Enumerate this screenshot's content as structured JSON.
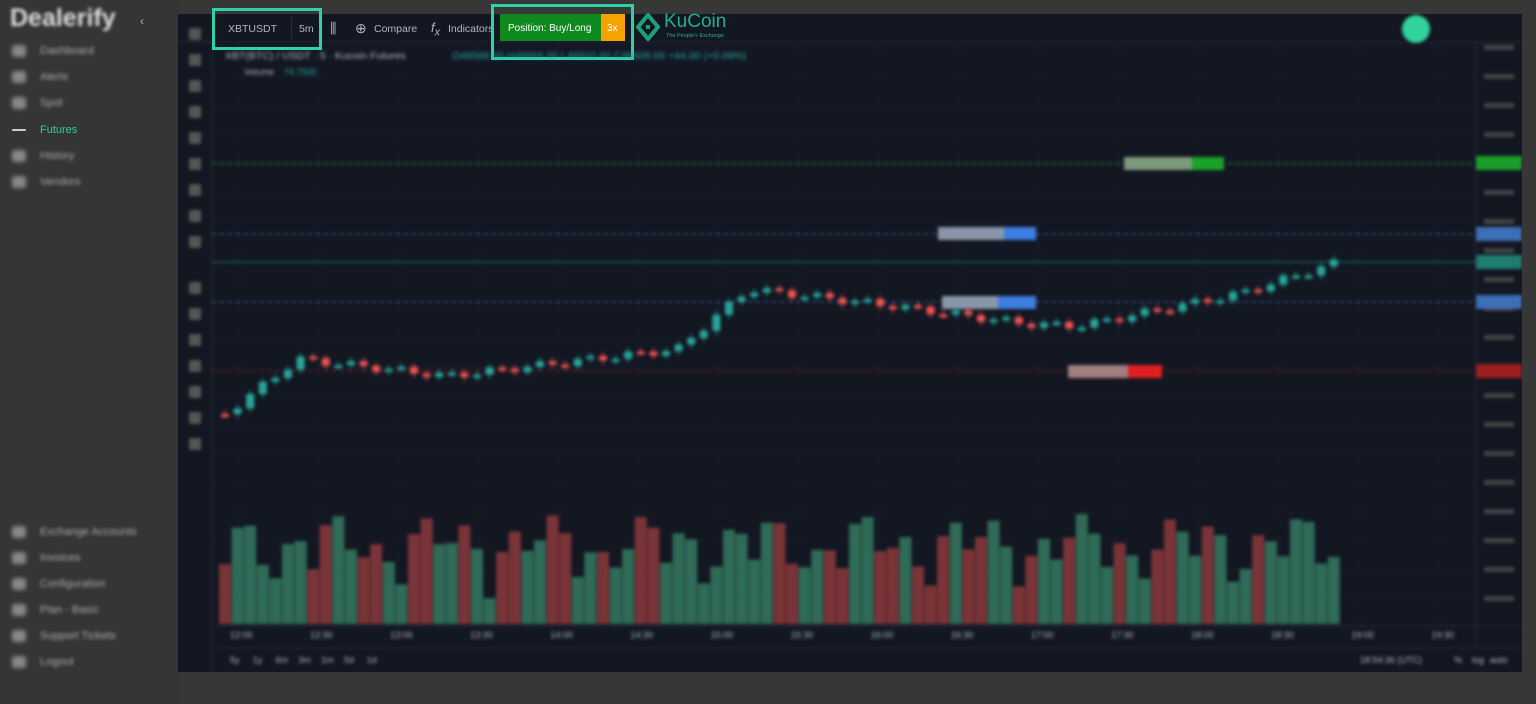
{
  "sidebar": {
    "brand": "Dealerify",
    "menu": [
      "Dashboard",
      "Alerts",
      "Spot",
      "Futures",
      "History",
      "Vendors"
    ],
    "active": "Futures",
    "bottom_menu": [
      "Exchange Accounts",
      "Invoices",
      "Configuration",
      "Plan - Basic",
      "Support Tickets",
      "Logout"
    ]
  },
  "toolbar": {
    "symbol": "XBTUSDT",
    "interval": "5m",
    "compare": "Compare",
    "indicators": "Indicators",
    "position": "Position: Buy/Long",
    "leverage": "3x",
    "exchange": "KuCoin",
    "exchange_tagline": "The People's Exchange"
  },
  "legend": {
    "pair": "XBT(BTC) / USDT · 5 · Kucoin Futures",
    "ohlc": "O48568.00 H48666.00 L48502.00 C48609.00 +44.00 (+0.09%)",
    "volume_label": "Volume",
    "volume_value": "74.7930"
  },
  "time_axis": [
    "12:00",
    "12:30",
    "13:00",
    "13:30",
    "14:00",
    "14:30",
    "15:00",
    "15:30",
    "16:00",
    "16:30",
    "17:00",
    "17:30",
    "18:00",
    "18:30",
    "19:00",
    "19:30"
  ],
  "ranges": [
    "5y",
    "1y",
    "6m",
    "3m",
    "1m",
    "5d",
    "1d"
  ],
  "clock": "18:54:36 (UTC)",
  "scale_options": [
    "%",
    "log",
    "auto"
  ]
}
